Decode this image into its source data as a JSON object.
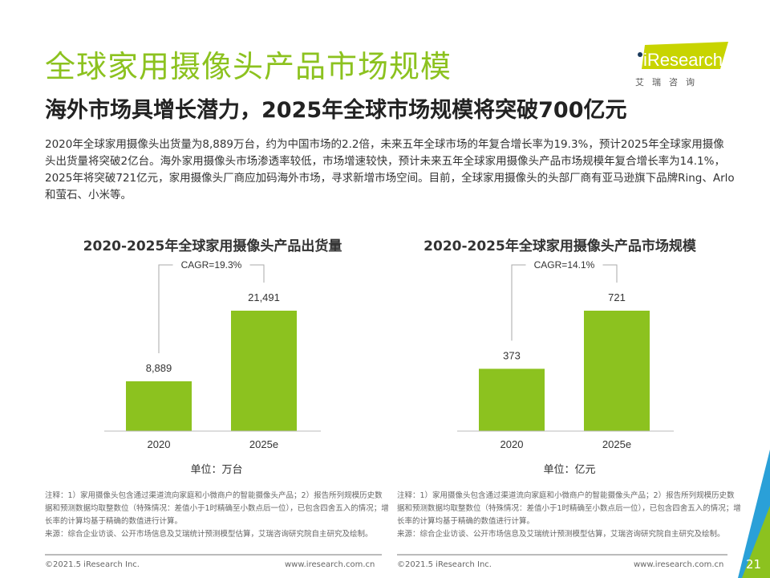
{
  "header": {
    "title": "全球家用摄像头产品市场规模",
    "subtitle": "海外市场具增长潜力，2025年全球市场规模将突破700亿元"
  },
  "body_text": "2020年全球家用摄像头出货量为8,889万台，约为中国市场的2.2倍，未来五年全球市场的年复合增长率为19.3%，预计2025年全球家用摄像头出货量将突破2亿台。海外家用摄像头市场渗透率较低，市场增速较快，预计未来五年全球家用摄像头产品市场规模年复合增长率为14.1%，2025年将突破721亿元，家用摄像头厂商应加码海外市场，寻求新增市场空间。目前，全球家用摄像头的头部厂商有亚马逊旗下品牌Ring、Arlo和萤石、小米等。",
  "logo": {
    "text": "iResearch",
    "subtext": "艾 瑞 咨 询",
    "color": "#c8d400"
  },
  "colors": {
    "accent": "#8cc21f",
    "bar": "#8cc21f"
  },
  "chart_data": [
    {
      "type": "bar",
      "title": "2020-2025年全球家用摄像头产品出货量",
      "categories": [
        "2020",
        "2025e"
      ],
      "values": [
        8889,
        21491
      ],
      "data_labels": [
        "8,889",
        "21,491"
      ],
      "annotation": "CAGR=19.3%",
      "unit": "单位：万台",
      "ylim": [
        0,
        24000
      ]
    },
    {
      "type": "bar",
      "title": "2020-2025年全球家用摄像头产品市场规模",
      "categories": [
        "2020",
        "2025e"
      ],
      "values": [
        373,
        721
      ],
      "data_labels": [
        "373",
        "721"
      ],
      "annotation": "CAGR=14.1%",
      "unit": "单位：亿元",
      "ylim": [
        0,
        800
      ]
    }
  ],
  "notes": [
    {
      "note": "注释：1）家用摄像头包含通过渠道流向家庭和小微商户的智能摄像头产品；2）报告所列规模历史数据和预测数据均取整数位（特殊情况：差值小于1时精确至小数点后一位），已包含四舍五入的情况；增长率的计算均基于精确的数值进行计算。",
      "source": "来源：综合企业访谈、公开市场信息及艾瑞统计预测模型估算，艾瑞咨询研究院自主研究及绘制。"
    },
    {
      "note": "注释：1）家用摄像头包含通过渠道流向家庭和小微商户的智能摄像头产品；2）报告所列规模历史数据和预测数据均取整数位（特殊情况：差值小于1时精确至小数点后一位），已包含四舍五入的情况；增长率的计算均基于精确的数值进行计算。",
      "source": "来源：综合企业访谈、公开市场信息及艾瑞统计预测模型估算，艾瑞咨询研究院自主研究及绘制。"
    }
  ],
  "footer": {
    "copyright": "©2021.5 iResearch Inc.",
    "website": "www.iresearch.com.cn",
    "page": "21"
  }
}
